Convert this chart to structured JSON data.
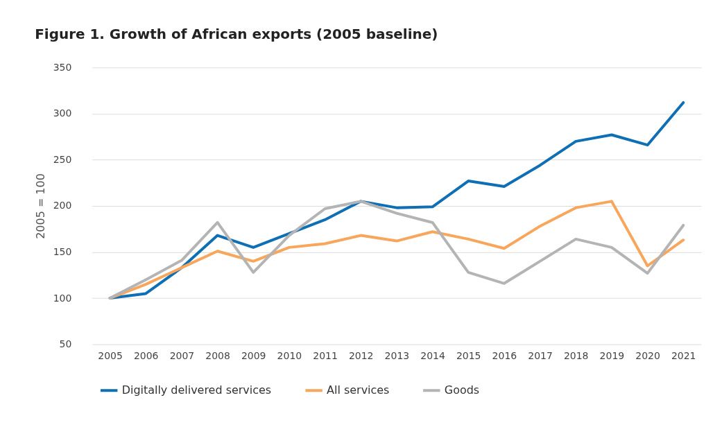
{
  "chart_data": {
    "type": "line",
    "title": "Figure 1. Growth of African exports (2005 baseline)",
    "ylabel": "2005 = 100",
    "categories": [
      "2005",
      "2006",
      "2007",
      "2008",
      "2009",
      "2010",
      "2011",
      "2012",
      "2013",
      "2014",
      "2015",
      "2016",
      "2017",
      "2018",
      "2019",
      "2020",
      "2021"
    ],
    "series": [
      {
        "name": "Digitally delivered services",
        "color": "#0f6fb5",
        "values": [
          100,
          105,
          133,
          168,
          155,
          170,
          185,
          205,
          198,
          199,
          227,
          221,
          244,
          270,
          277,
          266,
          312
        ]
      },
      {
        "name": "All services",
        "color": "#f7a65c",
        "values": [
          100,
          115,
          133,
          151,
          140,
          155,
          159,
          168,
          162,
          172,
          164,
          154,
          178,
          198,
          205,
          135,
          163
        ]
      },
      {
        "name": "Goods",
        "color": "#b4b4b4",
        "values": [
          100,
          120,
          141,
          182,
          128,
          168,
          197,
          205,
          192,
          182,
          128,
          116,
          140,
          164,
          155,
          127,
          179
        ]
      }
    ],
    "ylim": [
      50,
      350
    ],
    "yticks": [
      50,
      100,
      150,
      200,
      250,
      300,
      350
    ],
    "grid": "y",
    "legend": "bottom",
    "line_style": "solid",
    "marker": "none"
  }
}
